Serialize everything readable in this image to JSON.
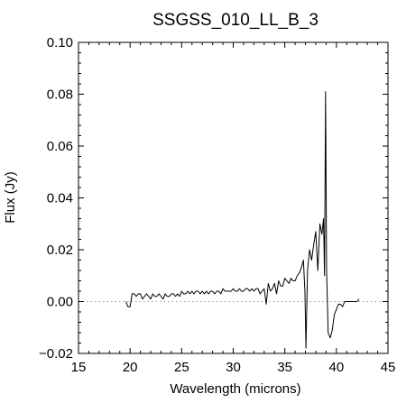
{
  "chart_data": {
    "type": "line",
    "title": "SSGSS_010_LL_B_3",
    "xlabel": "Wavelength (microns)",
    "ylabel": "Flux (Jy)",
    "xlim": [
      15,
      45
    ],
    "ylim": [
      -0.02,
      0.1
    ],
    "x_ticks": [
      15,
      20,
      25,
      30,
      35,
      40,
      45
    ],
    "x_tick_labels": [
      "15",
      "20",
      "25",
      "30",
      "35",
      "40",
      "45"
    ],
    "y_ticks": [
      -0.02,
      0.0,
      0.02,
      0.04,
      0.06,
      0.08,
      0.1
    ],
    "y_tick_labels": [
      "−0.02",
      "0.00",
      "0.02",
      "0.04",
      "0.06",
      "0.08",
      "0.10"
    ],
    "grid": false,
    "reference_line": {
      "y": 0.0,
      "style": "dotted",
      "color": "#999999"
    },
    "series": [
      {
        "color": "#000000",
        "x": [
          19.6,
          19.8,
          20.0,
          20.2,
          20.4,
          20.6,
          20.8,
          21.0,
          21.2,
          21.4,
          21.6,
          21.8,
          22.0,
          22.2,
          22.4,
          22.6,
          22.8,
          23.0,
          23.2,
          23.4,
          23.6,
          23.8,
          24.0,
          24.2,
          24.4,
          24.6,
          24.8,
          25.0,
          25.2,
          25.4,
          25.6,
          25.8,
          26.0,
          26.2,
          26.4,
          26.6,
          26.8,
          27.0,
          27.2,
          27.4,
          27.6,
          27.8,
          28.0,
          28.2,
          28.4,
          28.6,
          28.8,
          29.0,
          29.2,
          29.4,
          29.6,
          29.8,
          30.0,
          30.2,
          30.4,
          30.6,
          30.8,
          31.0,
          31.2,
          31.4,
          31.6,
          31.8,
          32.0,
          32.2,
          32.4,
          32.6,
          32.8,
          33.0,
          33.2,
          33.4,
          33.6,
          33.8,
          34.0,
          34.2,
          34.4,
          34.6,
          34.8,
          35.0,
          35.2,
          35.4,
          35.6,
          35.8,
          36.0,
          36.2,
          36.4,
          36.6,
          36.8,
          36.95,
          37.05,
          37.2,
          37.4,
          37.6,
          37.8,
          38.0,
          38.2,
          38.4,
          38.6,
          38.75,
          38.85,
          38.95,
          39.05,
          39.2,
          39.4,
          39.6,
          39.8,
          40.0,
          40.2,
          40.4,
          40.6,
          40.8,
          41.0,
          41.2,
          41.4,
          41.6,
          41.8,
          42.0,
          42.2
        ],
        "y": [
          0.0,
          -0.002,
          -0.002,
          0.003,
          0.003,
          0.002,
          0.003,
          0.003,
          0.001,
          0.002,
          0.003,
          0.002,
          0.001,
          0.003,
          0.002,
          0.002,
          0.003,
          0.002,
          0.001,
          0.003,
          0.002,
          0.002,
          0.003,
          0.003,
          0.002,
          0.003,
          0.002,
          0.004,
          0.003,
          0.003,
          0.004,
          0.003,
          0.004,
          0.003,
          0.004,
          0.004,
          0.003,
          0.004,
          0.003,
          0.004,
          0.003,
          0.004,
          0.004,
          0.003,
          0.004,
          0.004,
          0.003,
          0.005,
          0.004,
          0.004,
          0.004,
          0.004,
          0.005,
          0.004,
          0.004,
          0.005,
          0.004,
          0.004,
          0.005,
          0.005,
          0.004,
          0.005,
          0.004,
          0.005,
          0.005,
          0.003,
          0.004,
          0.005,
          -0.001,
          0.007,
          0.004,
          0.005,
          0.007,
          0.003,
          0.008,
          0.006,
          0.006,
          0.009,
          0.008,
          0.007,
          0.009,
          0.008,
          0.008,
          0.01,
          0.011,
          0.013,
          0.016,
          0.004,
          -0.018,
          0.012,
          0.02,
          0.016,
          0.022,
          0.027,
          0.012,
          0.03,
          0.026,
          0.032,
          0.01,
          0.081,
          0.012,
          -0.012,
          -0.014,
          -0.011,
          -0.005,
          -0.003,
          -0.001,
          -0.001,
          -0.002,
          0.0,
          0.0,
          0.0,
          0.0,
          0.0,
          0.0,
          0.0,
          0.001
        ]
      }
    ]
  }
}
